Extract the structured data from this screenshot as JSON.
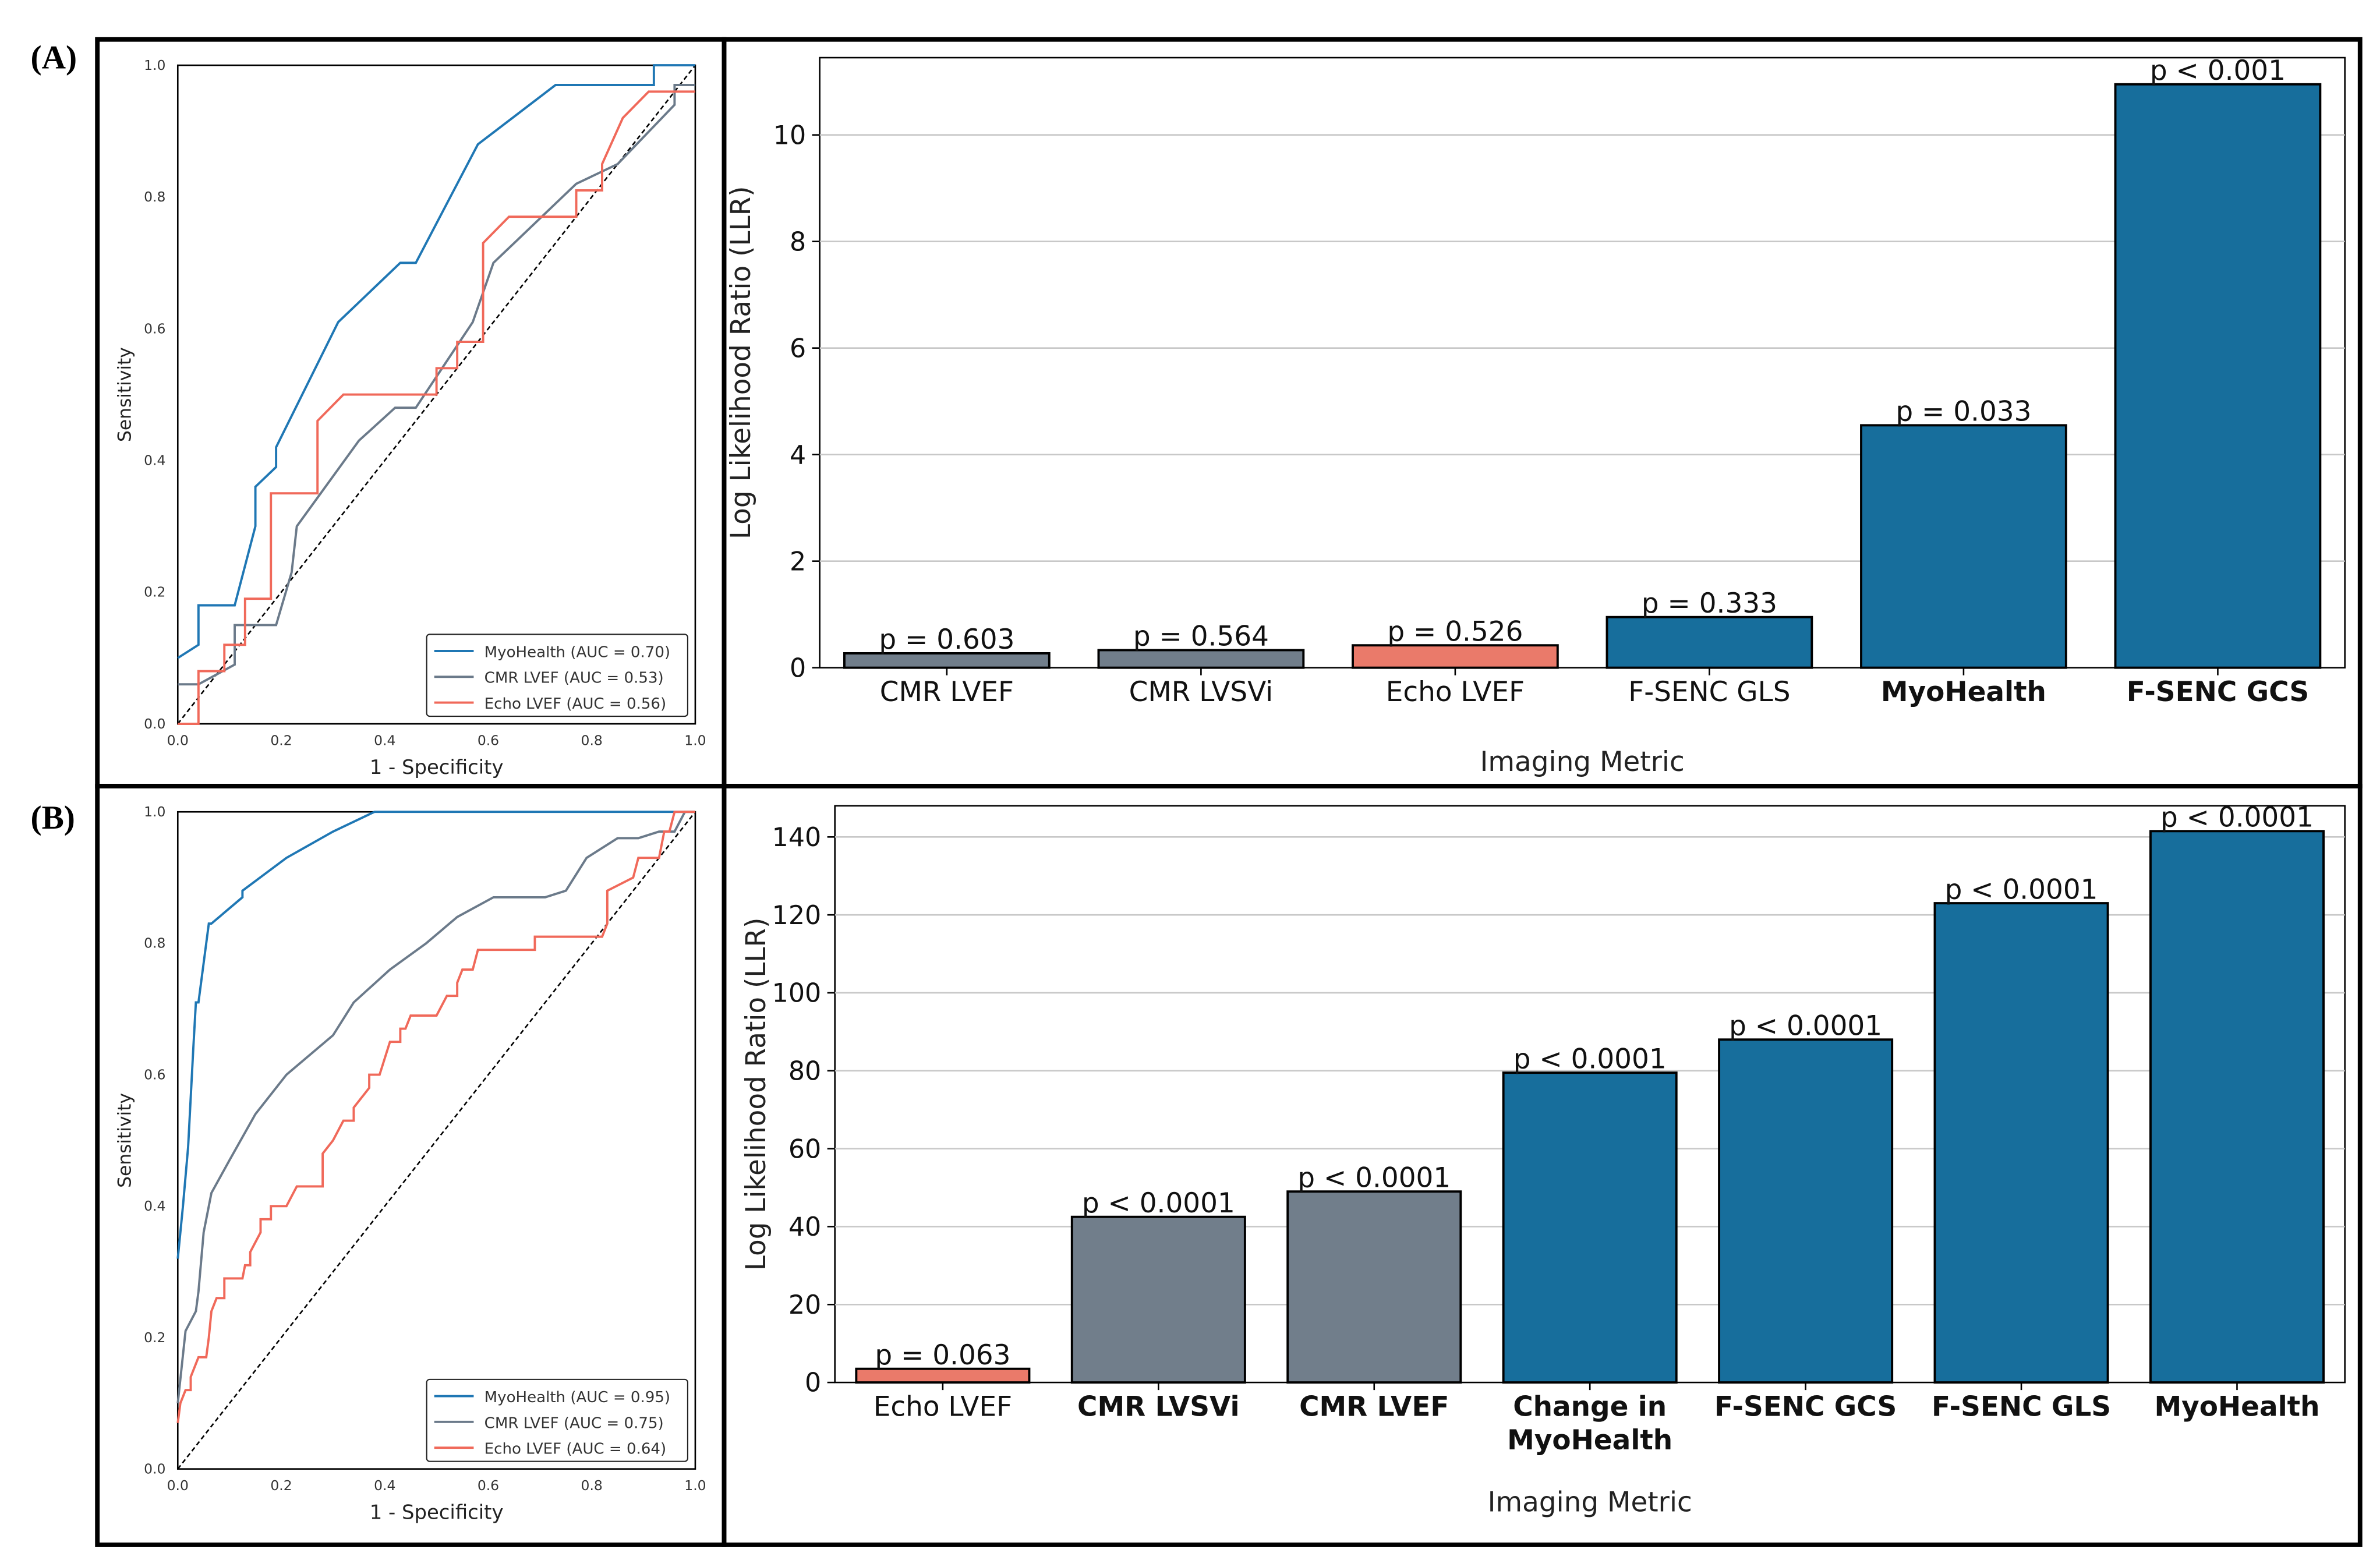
{
  "panels": [
    {
      "label": "(A)"
    },
    {
      "label": "(B)"
    }
  ],
  "colors": {
    "myohealth": "#1f77b4",
    "cmr": "#6b7a8a",
    "echo": "#f0695a",
    "bar_blue": "#176e9c",
    "bar_gray": "#717e8b",
    "bar_salmon": "#ea7a6a"
  },
  "chart_data": [
    {
      "type": "line",
      "title": "",
      "xlabel": "1 - Specificity",
      "ylabel": "Sensitivity",
      "xlim": [
        0,
        1
      ],
      "ylim": [
        0,
        1
      ],
      "xticks": [
        "0.0",
        "0.2",
        "0.4",
        "0.6",
        "0.8",
        "1.0"
      ],
      "yticks": [
        "0.0",
        "0.2",
        "0.4",
        "0.6",
        "0.8",
        "1.0"
      ],
      "legend_position": "bottom-right",
      "series": [
        {
          "name": "MyoHealth (AUC = 0.70)",
          "color_key": "myohealth",
          "points": [
            [
              0,
              0.1
            ],
            [
              0.04,
              0.12
            ],
            [
              0.04,
              0.18
            ],
            [
              0.11,
              0.18
            ],
            [
              0.15,
              0.3
            ],
            [
              0.15,
              0.36
            ],
            [
              0.19,
              0.39
            ],
            [
              0.19,
              0.42
            ],
            [
              0.31,
              0.61
            ],
            [
              0.43,
              0.7
            ],
            [
              0.46,
              0.7
            ],
            [
              0.58,
              0.88
            ],
            [
              0.73,
              0.97
            ],
            [
              0.92,
              0.97
            ],
            [
              0.92,
              1
            ],
            [
              1,
              1
            ]
          ]
        },
        {
          "name": "CMR LVEF (AUC = 0.53)",
          "color_key": "cmr",
          "points": [
            [
              0,
              0.06
            ],
            [
              0.04,
              0.06
            ],
            [
              0.11,
              0.09
            ],
            [
              0.11,
              0.15
            ],
            [
              0.19,
              0.15
            ],
            [
              0.22,
              0.23
            ],
            [
              0.23,
              0.3
            ],
            [
              0.35,
              0.43
            ],
            [
              0.42,
              0.48
            ],
            [
              0.46,
              0.48
            ],
            [
              0.57,
              0.61
            ],
            [
              0.61,
              0.7
            ],
            [
              0.77,
              0.82
            ],
            [
              0.85,
              0.85
            ],
            [
              0.96,
              0.94
            ],
            [
              0.96,
              0.97
            ],
            [
              1,
              0.97
            ]
          ]
        },
        {
          "name": "Echo LVEF (AUC = 0.56)",
          "color_key": "echo",
          "points": [
            [
              0,
              0
            ],
            [
              0.04,
              0
            ],
            [
              0.04,
              0.08
            ],
            [
              0.09,
              0.08
            ],
            [
              0.09,
              0.12
            ],
            [
              0.13,
              0.12
            ],
            [
              0.13,
              0.19
            ],
            [
              0.18,
              0.19
            ],
            [
              0.18,
              0.35
            ],
            [
              0.27,
              0.35
            ],
            [
              0.27,
              0.46
            ],
            [
              0.32,
              0.5
            ],
            [
              0.5,
              0.5
            ],
            [
              0.5,
              0.54
            ],
            [
              0.54,
              0.54
            ],
            [
              0.54,
              0.58
            ],
            [
              0.59,
              0.58
            ],
            [
              0.59,
              0.73
            ],
            [
              0.64,
              0.77
            ],
            [
              0.77,
              0.77
            ],
            [
              0.77,
              0.81
            ],
            [
              0.82,
              0.81
            ],
            [
              0.82,
              0.85
            ],
            [
              0.86,
              0.92
            ],
            [
              0.91,
              0.96
            ],
            [
              1,
              0.96
            ]
          ]
        }
      ]
    },
    {
      "type": "bar",
      "title": "",
      "xlabel": "Imaging Metric",
      "ylabel": "Log Likelihood Ratio (LLR)",
      "ylim": [
        0,
        11.45
      ],
      "yticks": [
        0,
        2,
        4,
        6,
        8,
        10
      ],
      "grid": true,
      "categories": [
        "CMR LVEF",
        "CMR LVSVi",
        "Echo LVEF",
        "F-SENC GLS",
        "MyoHealth",
        "F-SENC GCS"
      ],
      "bold": [
        false,
        false,
        false,
        false,
        true,
        true
      ],
      "values": [
        0.27,
        0.33,
        0.42,
        0.95,
        4.55,
        10.95
      ],
      "color_keys": [
        "bar_gray",
        "bar_gray",
        "bar_salmon",
        "bar_blue",
        "bar_blue",
        "bar_blue"
      ],
      "annotations": [
        "p = 0.603",
        "p = 0.564",
        "p = 0.526",
        "p = 0.333",
        "p = 0.033",
        "p < 0.001"
      ]
    },
    {
      "type": "line",
      "title": "",
      "xlabel": "1 - Specificity",
      "ylabel": "Sensitivity",
      "xlim": [
        0,
        1
      ],
      "ylim": [
        0,
        1
      ],
      "xticks": [
        "0.0",
        "0.2",
        "0.4",
        "0.6",
        "0.8",
        "1.0"
      ],
      "yticks": [
        "0.0",
        "0.2",
        "0.4",
        "0.6",
        "0.8",
        "1.0"
      ],
      "legend_position": "bottom-right",
      "series": [
        {
          "name": "MyoHealth (AUC = 0.95)",
          "color_key": "myohealth",
          "points": [
            [
              0,
              0.32
            ],
            [
              0.01,
              0.4
            ],
            [
              0.02,
              0.49
            ],
            [
              0.03,
              0.64
            ],
            [
              0.035,
              0.71
            ],
            [
              0.04,
              0.71
            ],
            [
              0.06,
              0.83
            ],
            [
              0.065,
              0.83
            ],
            [
              0.125,
              0.87
            ],
            [
              0.125,
              0.88
            ],
            [
              0.21,
              0.93
            ],
            [
              0.3,
              0.97
            ],
            [
              0.38,
              1
            ],
            [
              1,
              1
            ]
          ]
        },
        {
          "name": "CMR LVEF (AUC = 0.75)",
          "color_key": "cmr",
          "points": [
            [
              0,
              0.1
            ],
            [
              0.015,
              0.21
            ],
            [
              0.035,
              0.24
            ],
            [
              0.04,
              0.27
            ],
            [
              0.05,
              0.36
            ],
            [
              0.065,
              0.42
            ],
            [
              0.1,
              0.47
            ],
            [
              0.15,
              0.54
            ],
            [
              0.21,
              0.6
            ],
            [
              0.3,
              0.66
            ],
            [
              0.34,
              0.71
            ],
            [
              0.41,
              0.76
            ],
            [
              0.48,
              0.8
            ],
            [
              0.54,
              0.84
            ],
            [
              0.61,
              0.87
            ],
            [
              0.71,
              0.87
            ],
            [
              0.75,
              0.88
            ],
            [
              0.79,
              0.93
            ],
            [
              0.85,
              0.96
            ],
            [
              0.89,
              0.96
            ],
            [
              0.93,
              0.97
            ],
            [
              0.96,
              0.97
            ],
            [
              0.98,
              1
            ],
            [
              1,
              1
            ]
          ]
        },
        {
          "name": "Echo LVEF (AUC = 0.64)",
          "color_key": "echo",
          "points": [
            [
              0,
              0.07
            ],
            [
              0.005,
              0.1
            ],
            [
              0.015,
              0.12
            ],
            [
              0.025,
              0.12
            ],
            [
              0.025,
              0.14
            ],
            [
              0.04,
              0.17
            ],
            [
              0.055,
              0.17
            ],
            [
              0.06,
              0.2
            ],
            [
              0.065,
              0.24
            ],
            [
              0.075,
              0.26
            ],
            [
              0.09,
              0.26
            ],
            [
              0.09,
              0.29
            ],
            [
              0.125,
              0.29
            ],
            [
              0.13,
              0.31
            ],
            [
              0.14,
              0.31
            ],
            [
              0.14,
              0.33
            ],
            [
              0.16,
              0.36
            ],
            [
              0.16,
              0.38
            ],
            [
              0.18,
              0.38
            ],
            [
              0.18,
              0.4
            ],
            [
              0.21,
              0.4
            ],
            [
              0.23,
              0.43
            ],
            [
              0.28,
              0.43
            ],
            [
              0.28,
              0.48
            ],
            [
              0.3,
              0.5
            ],
            [
              0.32,
              0.53
            ],
            [
              0.34,
              0.53
            ],
            [
              0.34,
              0.55
            ],
            [
              0.37,
              0.58
            ],
            [
              0.37,
              0.6
            ],
            [
              0.39,
              0.6
            ],
            [
              0.41,
              0.65
            ],
            [
              0.43,
              0.65
            ],
            [
              0.43,
              0.67
            ],
            [
              0.44,
              0.67
            ],
            [
              0.45,
              0.69
            ],
            [
              0.5,
              0.69
            ],
            [
              0.52,
              0.72
            ],
            [
              0.54,
              0.72
            ],
            [
              0.54,
              0.74
            ],
            [
              0.55,
              0.76
            ],
            [
              0.57,
              0.76
            ],
            [
              0.58,
              0.79
            ],
            [
              0.69,
              0.79
            ],
            [
              0.69,
              0.81
            ],
            [
              0.82,
              0.81
            ],
            [
              0.83,
              0.83
            ],
            [
              0.83,
              0.88
            ],
            [
              0.88,
              0.9
            ],
            [
              0.89,
              0.93
            ],
            [
              0.93,
              0.93
            ],
            [
              0.94,
              0.97
            ],
            [
              0.95,
              0.97
            ],
            [
              0.96,
              1
            ],
            [
              1,
              1
            ]
          ]
        }
      ]
    },
    {
      "type": "bar",
      "title": "",
      "xlabel": "Imaging Metric",
      "ylabel": "Log Likelihood Ratio (LLR)",
      "ylim": [
        0,
        148
      ],
      "yticks": [
        0,
        20,
        40,
        60,
        80,
        100,
        120,
        140
      ],
      "grid": true,
      "categories": [
        "Echo LVEF",
        "CMR LVSVi",
        "CMR LVEF",
        "Change in\nMyoHealth",
        "F-SENC GCS",
        "F-SENC GLS",
        "MyoHealth"
      ],
      "bold": [
        false,
        true,
        true,
        true,
        true,
        true,
        true
      ],
      "values": [
        3.5,
        42.5,
        49,
        79.5,
        88,
        123,
        141.5
      ],
      "color_keys": [
        "bar_salmon",
        "bar_gray",
        "bar_gray",
        "bar_blue",
        "bar_blue",
        "bar_blue",
        "bar_blue"
      ],
      "annotations": [
        "p = 0.063",
        "p < 0.0001",
        "p < 0.0001",
        "p < 0.0001",
        "p < 0.0001",
        "p < 0.0001",
        "p < 0.0001"
      ]
    }
  ]
}
